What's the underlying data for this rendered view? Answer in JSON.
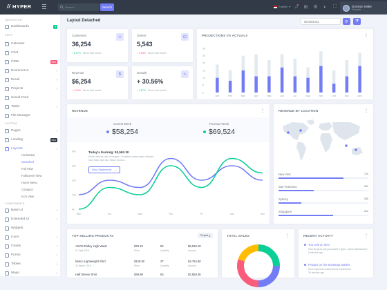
{
  "topbar": {
    "brand": "HYPER",
    "search_placeholder": "Search...",
    "search_button": "Search",
    "language": "English",
    "user_name": "Dominic Keller",
    "user_role": "Founder"
  },
  "sidebar": {
    "section_navigation": "NAVIGATION",
    "dashboards": {
      "label": "Dashboards",
      "badge": "4"
    },
    "section_apps": "APPS",
    "apps": [
      {
        "label": "Calendar",
        "chevron": ""
      },
      {
        "label": "Chat",
        "chevron": ""
      },
      {
        "label": "CRM",
        "badge": "New",
        "chevron": ""
      },
      {
        "label": "Ecommerce",
        "chevron": "›"
      },
      {
        "label": "Email",
        "chevron": "›"
      },
      {
        "label": "Projects",
        "chevron": "›"
      },
      {
        "label": "Social Feed",
        "chevron": ""
      },
      {
        "label": "Tasks",
        "chevron": "›"
      },
      {
        "label": "File Manager",
        "chevron": ""
      }
    ],
    "section_custom": "CUSTOM",
    "custom": [
      {
        "label": "Pages",
        "chevron": "›"
      },
      {
        "label": "Landing",
        "badge": "New"
      },
      {
        "label": "Layouts",
        "chevron": "›"
      }
    ],
    "layouts_sub": [
      "Horizontal",
      "Detached",
      "Full View",
      "Fullscreen View",
      "Hover Menu",
      "Compact",
      "Icon View"
    ],
    "section_components": "COMPONENTS",
    "components": [
      {
        "label": "Base UI",
        "chevron": "›"
      },
      {
        "label": "Extended UI",
        "chevron": "›"
      },
      {
        "label": "Widgets",
        "chevron": ""
      },
      {
        "label": "Icons",
        "chevron": "›"
      },
      {
        "label": "Charts",
        "chevron": "›"
      },
      {
        "label": "Forms",
        "chevron": "›"
      },
      {
        "label": "Tables",
        "chevron": "›"
      },
      {
        "label": "Maps",
        "chevron": "›"
      }
    ]
  },
  "page": {
    "title": "Layout Detached",
    "date": "06/18/2023"
  },
  "stats": [
    {
      "label": "Customers",
      "value": "36,254",
      "change": "5.27%",
      "direction": "up",
      "since": "Since last month",
      "icon": "users-icon"
    },
    {
      "label": "Orders",
      "value": "5,543",
      "change": "1.08%",
      "direction": "down",
      "since": "Since last month",
      "icon": "cart-icon"
    },
    {
      "label": "Revenue",
      "value": "$6,254",
      "change": "7.00%",
      "direction": "down",
      "since": "Since last month",
      "icon": "dollar-icon"
    },
    {
      "label": "Growth",
      "value": "+ 30.56%",
      "change": "4.87%",
      "direction": "up",
      "since": "Since last month",
      "icon": "pulse-icon"
    }
  ],
  "projections": {
    "title": "PROJECTIONS VS ACTUALS",
    "chart_data": {
      "type": "bar",
      "categories": [
        "Jan",
        "Feb",
        "Mar",
        "Apr",
        "May",
        "Jun",
        "Jul",
        "Aug",
        "Sep",
        "Oct",
        "Nov",
        "Dec"
      ],
      "series": [
        {
          "name": "Actual",
          "values": [
            10,
            8,
            15,
            11,
            11,
            17,
            11,
            10,
            18,
            6,
            11,
            18
          ]
        },
        {
          "name": "Projection",
          "values": [
            9,
            7,
            10,
            15,
            11,
            9,
            12,
            7,
            10,
            9,
            11,
            9
          ]
        }
      ],
      "ylim": [
        0,
        30
      ],
      "yticks": [
        "0",
        "5",
        "10",
        "15",
        "20",
        "25",
        "30"
      ],
      "colors": [
        "#727cf5",
        "#e3eaef"
      ]
    }
  },
  "revenue": {
    "title": "REVENUE",
    "current_label": "Current Week",
    "current_value": "$58,254",
    "previous_label": "Previous Week",
    "previous_value": "$69,524",
    "earning_title": "Today's Earning: $2,562.30",
    "earning_desc": "Etiam ultrices nisi vel augue. Curabitur ullamcorper ultricies nisi. Nam eget dui. Etiam rhoncu...",
    "earning_button": "View Statements",
    "chart_data": {
      "type": "line",
      "categories": [
        "Mon",
        "Tue",
        "Wed",
        "Thu",
        "Fri",
        "Sat",
        "Sun"
      ],
      "series": [
        {
          "name": "Current Week",
          "values": [
            10,
            20,
            15,
            35,
            20,
            30,
            20
          ],
          "color": "#727cf5"
        },
        {
          "name": "Previous Week",
          "values": [
            0,
            15,
            10,
            30,
            15,
            35,
            25
          ],
          "color": "#0acf97"
        }
      ],
      "ylim": [
        0,
        40
      ],
      "yticks": [
        "0k",
        "10k",
        "20k",
        "30k",
        "40k"
      ]
    }
  },
  "location": {
    "title": "REVENUE BY LOCATION",
    "rows": [
      {
        "name": "New York",
        "value": "72k",
        "pct": 0.72
      },
      {
        "name": "San Francisco",
        "value": "39k",
        "pct": 0.39
      },
      {
        "name": "Sydney",
        "value": "25k",
        "pct": 0.25
      },
      {
        "name": "Singapore",
        "value": "61k",
        "pct": 0.61
      }
    ]
  },
  "products": {
    "title": "TOP SELLING PRODUCTS",
    "export": "Export",
    "rows": [
      {
        "name": "ASOS Ridley High Waist",
        "date": "07 April 2018",
        "price": "$79.49",
        "price_label": "Price",
        "qty": "82",
        "qty_label": "Quantity",
        "amount": "$6,518.18",
        "amount_label": "Amount"
      },
      {
        "name": "Marco Lightweight Shirt",
        "date": "25 March 2018",
        "price": "$128.50",
        "price_label": "Price",
        "qty": "37",
        "qty_label": "Quantity",
        "amount": "$4,754.50",
        "amount_label": "Amount"
      },
      {
        "name": "Half Sleeve Shirt",
        "date": "",
        "price": "$39.99",
        "price_label": "",
        "qty": "64",
        "qty_label": "",
        "amount": "$2,559.36",
        "amount_label": ""
      }
    ]
  },
  "total_sales": {
    "title": "TOTAL SALES"
  },
  "activity": {
    "title": "RECENT ACTIVITY",
    "items": [
      {
        "title": "You sold an item",
        "desc": "Paul Burgess just purchased \"Hyper - Admin Dashboard\"!",
        "time": "5 minutes ago"
      },
      {
        "title": "Product on the Bootstrap Market",
        "desc": "Dave Gamache added Admin Dashboard",
        "time": "30 minutes ago"
      }
    ]
  }
}
